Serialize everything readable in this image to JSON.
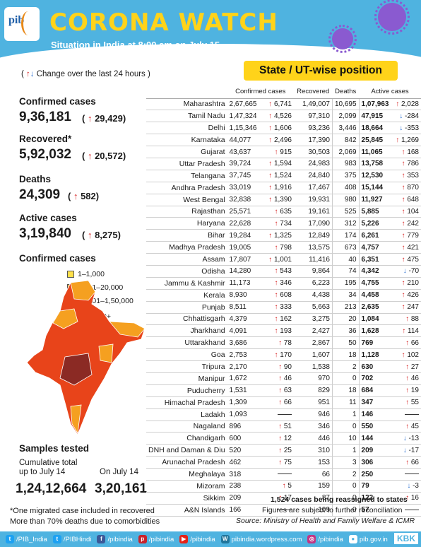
{
  "header": {
    "title": "CORONA WATCH",
    "subtitle": "Situation in India at 8:00 am on July 15",
    "logo_text": "pib"
  },
  "legend_note": "Change over the last 24 hours",
  "state_banner": "State / UT-wise position",
  "stats": [
    {
      "label": "Confirmed cases",
      "value": "9,36,181",
      "change": "29,429"
    },
    {
      "label": "Recovered*",
      "value": "5,92,032",
      "change": "20,572"
    },
    {
      "label": "Deaths",
      "value": "24,309",
      "change": "582"
    },
    {
      "label": "Active cases",
      "value": "3,19,840",
      "change": "8,275"
    }
  ],
  "map": {
    "title": "Confirmed cases",
    "legend": [
      {
        "label": "1–1,000",
        "color": "#ffe04a"
      },
      {
        "label": "1,001–20,000",
        "color": "#f5a020"
      },
      {
        "label": "20,001–1,50,000",
        "color": "#e8441a"
      },
      {
        "label": "2,50,000+",
        "color": "#8b2a24"
      }
    ]
  },
  "samples": {
    "title": "Samples tested",
    "cum_label_1": "Cumulative total",
    "cum_label_2": "up to July 14",
    "cum_value": "1,24,12,664",
    "day_label": "On July 14",
    "day_value": "3,20,161"
  },
  "table": {
    "headers": [
      "Confirmed cases",
      "Recovered",
      "Deaths",
      "Active cases"
    ],
    "rows": [
      [
        "Maharashtra",
        "2,67,665",
        "6,741",
        "up",
        "1,49,007",
        "10,695",
        "1,07,963",
        "2,028",
        "up"
      ],
      [
        "Tamil Nadu",
        "1,47,324",
        "4,526",
        "up",
        "97,310",
        "2,099",
        "47,915",
        "-284",
        "dn"
      ],
      [
        "Delhi",
        "1,15,346",
        "1,606",
        "up",
        "93,236",
        "3,446",
        "18,664",
        "-353",
        "dn"
      ],
      [
        "Karnataka",
        "44,077",
        "2,496",
        "up",
        "17,390",
        "842",
        "25,845",
        "1,269",
        "up"
      ],
      [
        "Gujarat",
        "43,637",
        "915",
        "up",
        "30,503",
        "2,069",
        "11,065",
        "168",
        "up"
      ],
      [
        "Uttar Pradesh",
        "39,724",
        "1,594",
        "up",
        "24,983",
        "983",
        "13,758",
        "786",
        "up"
      ],
      [
        "Telangana",
        "37,745",
        "1,524",
        "up",
        "24,840",
        "375",
        "12,530",
        "353",
        "up"
      ],
      [
        "Andhra Pradesh",
        "33,019",
        "1,916",
        "up",
        "17,467",
        "408",
        "15,144",
        "870",
        "up"
      ],
      [
        "West Bengal",
        "32,838",
        "1,390",
        "up",
        "19,931",
        "980",
        "11,927",
        "648",
        "up"
      ],
      [
        "Rajasthan",
        "25,571",
        "635",
        "up",
        "19,161",
        "525",
        "5,885",
        "104",
        "up"
      ],
      [
        "Haryana",
        "22,628",
        "734",
        "up",
        "17,090",
        "312",
        "5,226",
        "242",
        "up"
      ],
      [
        "Bihar",
        "19,284",
        "1,325",
        "up",
        "12,849",
        "174",
        "6,261",
        "779",
        "up"
      ],
      [
        "Madhya Pradesh",
        "19,005",
        "798",
        "up",
        "13,575",
        "673",
        "4,757",
        "421",
        "up"
      ],
      [
        "Assam",
        "17,807",
        "1,001",
        "up",
        "11,416",
        "40",
        "6,351",
        "475",
        "up"
      ],
      [
        "Odisha",
        "14,280",
        "543",
        "up",
        "9,864",
        "74",
        "4,342",
        "-70",
        "dn"
      ],
      [
        "Jammu & Kashmir",
        "11,173",
        "346",
        "up",
        "6,223",
        "195",
        "4,755",
        "210",
        "up"
      ],
      [
        "Kerala",
        "8,930",
        "608",
        "up",
        "4,438",
        "34",
        "4,458",
        "426",
        "up"
      ],
      [
        "Punjab",
        "8,511",
        "333",
        "up",
        "5,663",
        "213",
        "2,635",
        "247",
        "up"
      ],
      [
        "Chhattisgarh",
        "4,379",
        "162",
        "up",
        "3,275",
        "20",
        "1,084",
        "88",
        "up"
      ],
      [
        "Jharkhand",
        "4,091",
        "193",
        "up",
        "2,427",
        "36",
        "1,628",
        "114",
        "up"
      ],
      [
        "Uttarakhand",
        "3,686",
        "78",
        "up",
        "2,867",
        "50",
        "769",
        "66",
        "up"
      ],
      [
        "Goa",
        "2,753",
        "170",
        "up",
        "1,607",
        "18",
        "1,128",
        "102",
        "up"
      ],
      [
        "Tripura",
        "2,170",
        "90",
        "up",
        "1,538",
        "2",
        "630",
        "27",
        "up"
      ],
      [
        "Manipur",
        "1,672",
        "46",
        "up",
        "970",
        "0",
        "702",
        "46",
        "up"
      ],
      [
        "Puducherry",
        "1,531",
        "63",
        "up",
        "829",
        "18",
        "684",
        "19",
        "up"
      ],
      [
        "Himachal Pradesh",
        "1,309",
        "66",
        "up",
        "951",
        "11",
        "347",
        "55",
        "up"
      ],
      [
        "Ladakh",
        "1,093",
        "",
        "none",
        "946",
        "1",
        "146",
        "",
        "none"
      ],
      [
        "Nagaland",
        "896",
        "51",
        "up",
        "346",
        "0",
        "550",
        "45",
        "up"
      ],
      [
        "Chandigarh",
        "600",
        "12",
        "up",
        "446",
        "10",
        "144",
        "-13",
        "dn"
      ],
      [
        "DNH and Daman & Diu",
        "520",
        "25",
        "up",
        "310",
        "1",
        "209",
        "-17",
        "dn"
      ],
      [
        "Arunachal Pradesh",
        "462",
        "75",
        "up",
        "153",
        "3",
        "306",
        "66",
        "up"
      ],
      [
        "Meghalaya",
        "318",
        "",
        "none",
        "66",
        "2",
        "250",
        "",
        "none"
      ],
      [
        "Mizoram",
        "238",
        "5",
        "up",
        "159",
        "0",
        "79",
        "-3",
        "dn"
      ],
      [
        "Sikkim",
        "209",
        "17",
        "up",
        "87",
        "0",
        "122",
        "16",
        "up"
      ],
      [
        "A&N Islands",
        "166",
        "",
        "none",
        "109",
        "0",
        "57",
        "",
        "none"
      ]
    ]
  },
  "notes": {
    "reassign": "1,524 cases being reassigned to states",
    "subject": "Figures are subject to further reconciliation",
    "source": "Source: Ministry of Health and Family Welfare & ICMR",
    "note1": "*One migrated case included in recovered",
    "note2": "More than 70% deaths due to comorbidities"
  },
  "footer": {
    "items": [
      "/PIB_India",
      "/PIBHindi",
      "/pibindia",
      "/pibindia",
      "/pibindia",
      "pibindia.wordpress.com",
      "/pibindia",
      "pib.gov.in"
    ],
    "tag": "KBK"
  },
  "colors": {
    "header": "#4fb3e0",
    "banner": "#ffd31a",
    "up": "#d62020",
    "down": "#2a6fd0"
  }
}
